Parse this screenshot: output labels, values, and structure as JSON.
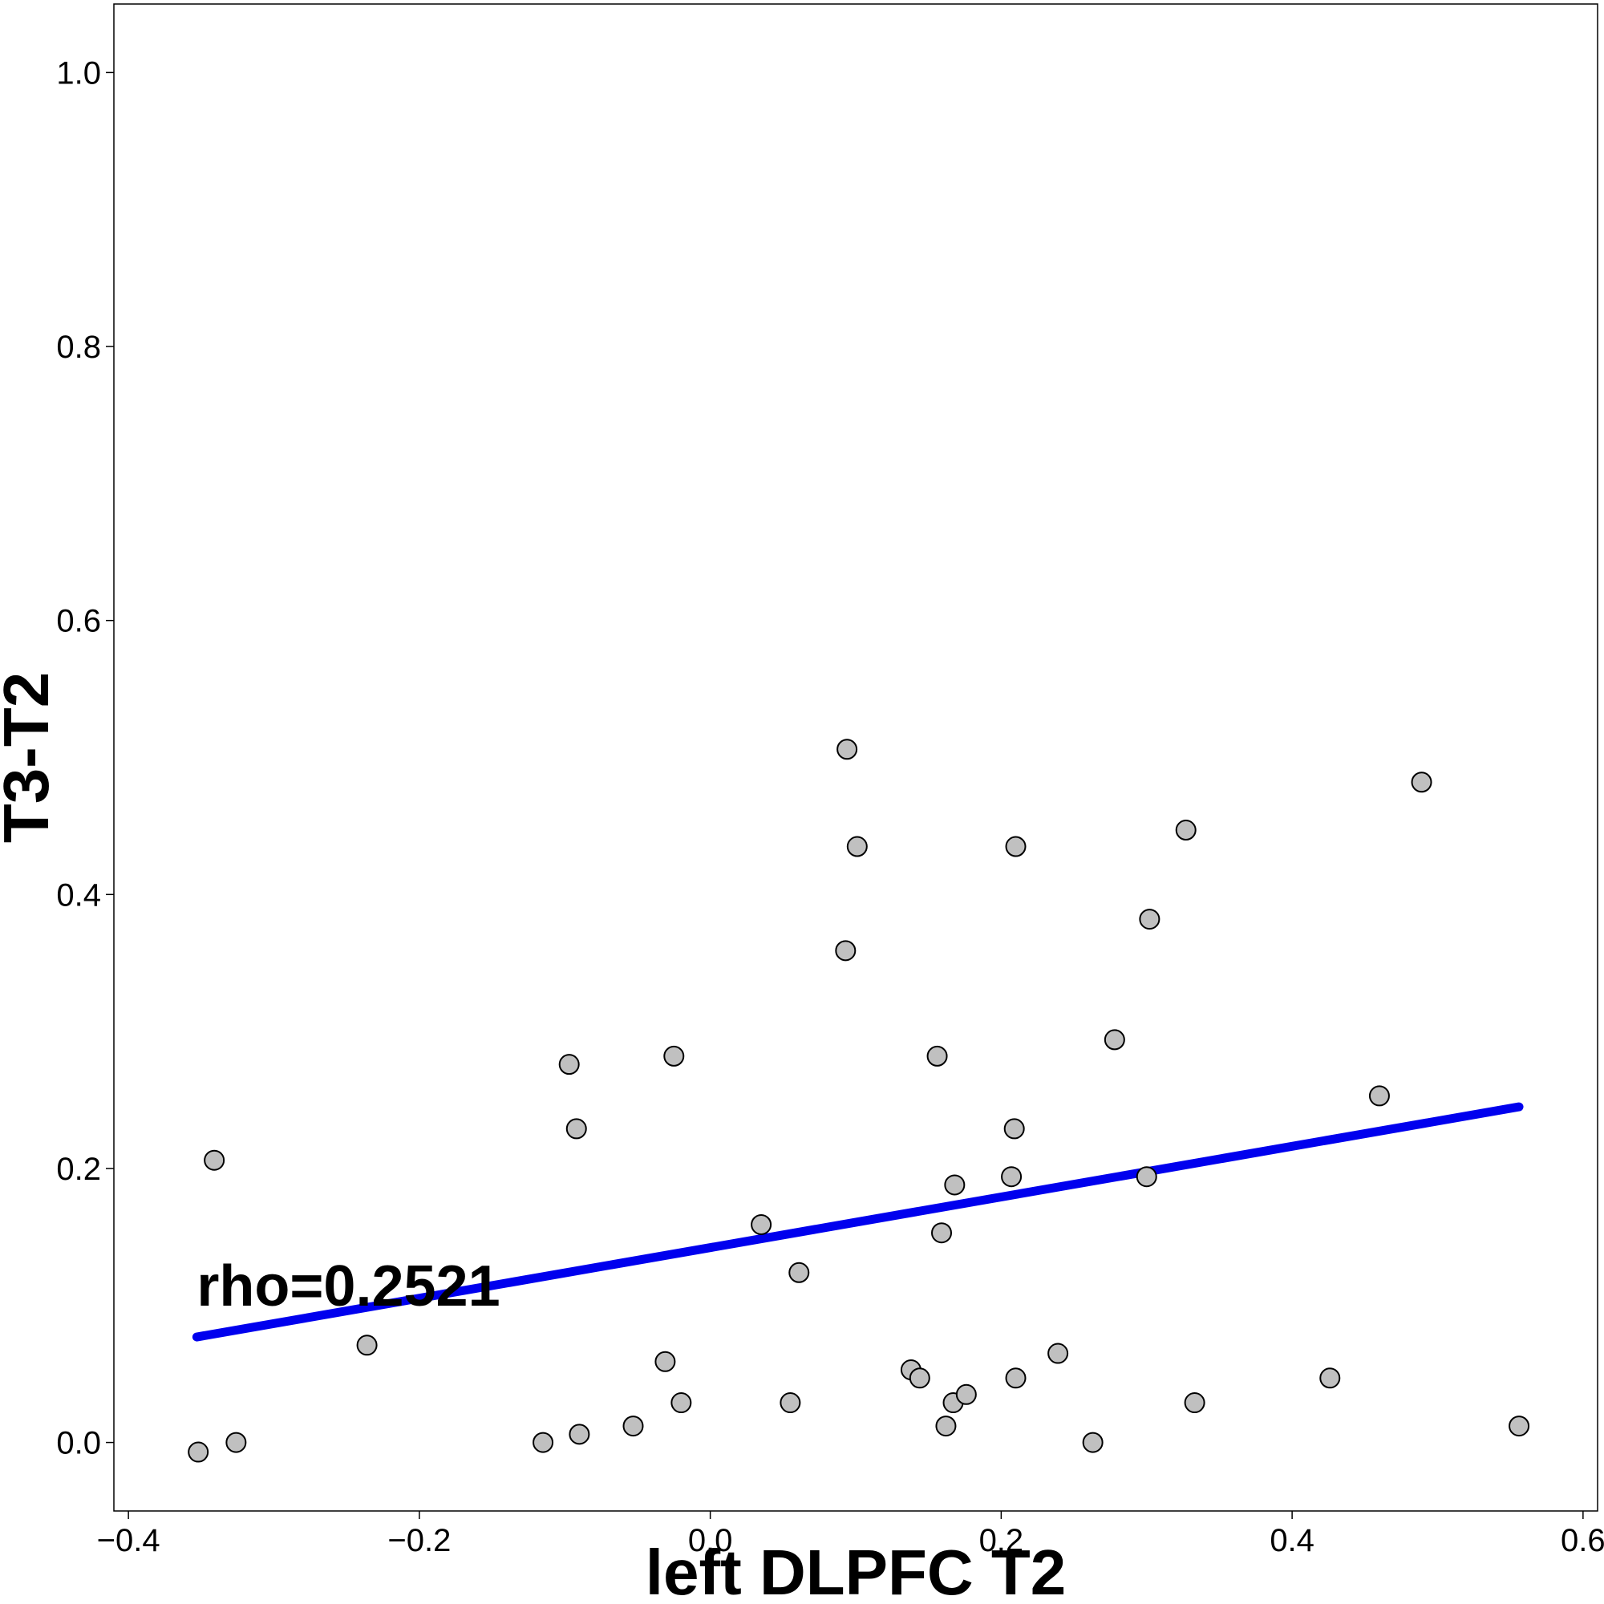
{
  "chart_data": {
    "type": "scatter",
    "title": "",
    "xlabel": "left DLPFC T2",
    "ylabel": "T3-T2",
    "xlim": [
      -0.41,
      0.61
    ],
    "ylim": [
      -0.05,
      1.05
    ],
    "x_ticks": [
      -0.4,
      -0.2,
      0.0,
      0.2,
      0.4,
      0.6
    ],
    "x_tick_labels": [
      "−0.4",
      "−0.2",
      "0.0",
      "0.2",
      "0.4",
      "0.6"
    ],
    "y_ticks": [
      0.0,
      0.2,
      0.4,
      0.6,
      0.8,
      1.0
    ],
    "y_tick_labels": [
      "0.0",
      "0.2",
      "0.4",
      "0.6",
      "0.8",
      "1.0"
    ],
    "grid": false,
    "point_color": "#c0c0c0",
    "point_edge_color": "#000000",
    "line_color": "#0000ee",
    "annotation": {
      "text": "rho=0.2521",
      "x": -0.353,
      "y": 0.1
    },
    "fit_line": {
      "x": [
        -0.353,
        0.556
      ],
      "y": [
        0.077,
        0.245
      ]
    },
    "points": [
      {
        "x": -0.352,
        "y": -0.007
      },
      {
        "x": -0.341,
        "y": 0.206
      },
      {
        "x": -0.326,
        "y": 0.0
      },
      {
        "x": -0.236,
        "y": 0.071
      },
      {
        "x": -0.115,
        "y": 0.0
      },
      {
        "x": -0.097,
        "y": 0.276
      },
      {
        "x": -0.092,
        "y": 0.229
      },
      {
        "x": -0.09,
        "y": 0.006
      },
      {
        "x": -0.053,
        "y": 0.012
      },
      {
        "x": -0.031,
        "y": 0.059
      },
      {
        "x": -0.025,
        "y": 0.282
      },
      {
        "x": -0.02,
        "y": 0.029
      },
      {
        "x": 0.035,
        "y": 0.159
      },
      {
        "x": 0.055,
        "y": 0.029
      },
      {
        "x": 0.061,
        "y": 0.124
      },
      {
        "x": 0.093,
        "y": 0.359
      },
      {
        "x": 0.094,
        "y": 0.506
      },
      {
        "x": 0.101,
        "y": 0.435
      },
      {
        "x": 0.138,
        "y": 0.053
      },
      {
        "x": 0.144,
        "y": 0.047
      },
      {
        "x": 0.156,
        "y": 0.282
      },
      {
        "x": 0.159,
        "y": 0.153
      },
      {
        "x": 0.162,
        "y": 0.012
      },
      {
        "x": 0.167,
        "y": 0.029
      },
      {
        "x": 0.168,
        "y": 0.188
      },
      {
        "x": 0.176,
        "y": 0.035
      },
      {
        "x": 0.207,
        "y": 0.194
      },
      {
        "x": 0.209,
        "y": 0.229
      },
      {
        "x": 0.21,
        "y": 0.435
      },
      {
        "x": 0.21,
        "y": 0.047
      },
      {
        "x": 0.239,
        "y": 0.065
      },
      {
        "x": 0.263,
        "y": 0.0
      },
      {
        "x": 0.278,
        "y": 0.294
      },
      {
        "x": 0.3,
        "y": 0.194
      },
      {
        "x": 0.302,
        "y": 0.382
      },
      {
        "x": 0.327,
        "y": 0.447
      },
      {
        "x": 0.333,
        "y": 0.029
      },
      {
        "x": 0.426,
        "y": 0.047
      },
      {
        "x": 0.46,
        "y": 0.253
      },
      {
        "x": 0.489,
        "y": 0.482
      },
      {
        "x": 0.556,
        "y": 0.012
      }
    ]
  }
}
